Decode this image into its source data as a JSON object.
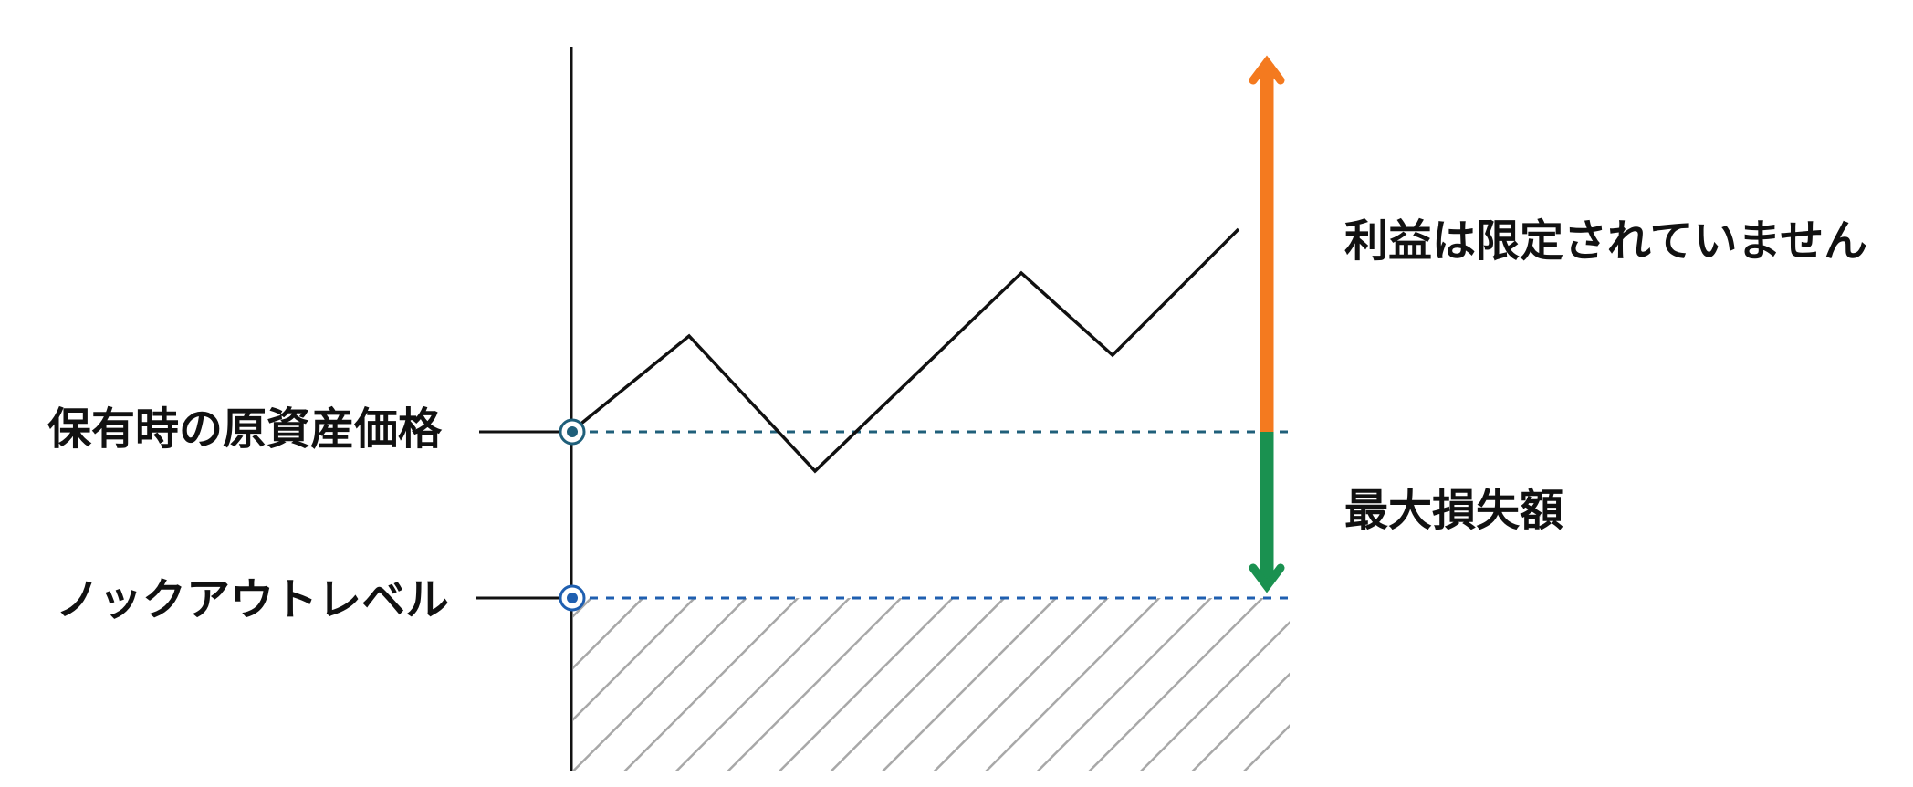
{
  "labels": {
    "holding_price": "保有時の原資産価格",
    "knockout_level": "ノックアウトレベル",
    "profit": "利益は限定されていません",
    "max_loss": "最大損失額"
  }
}
